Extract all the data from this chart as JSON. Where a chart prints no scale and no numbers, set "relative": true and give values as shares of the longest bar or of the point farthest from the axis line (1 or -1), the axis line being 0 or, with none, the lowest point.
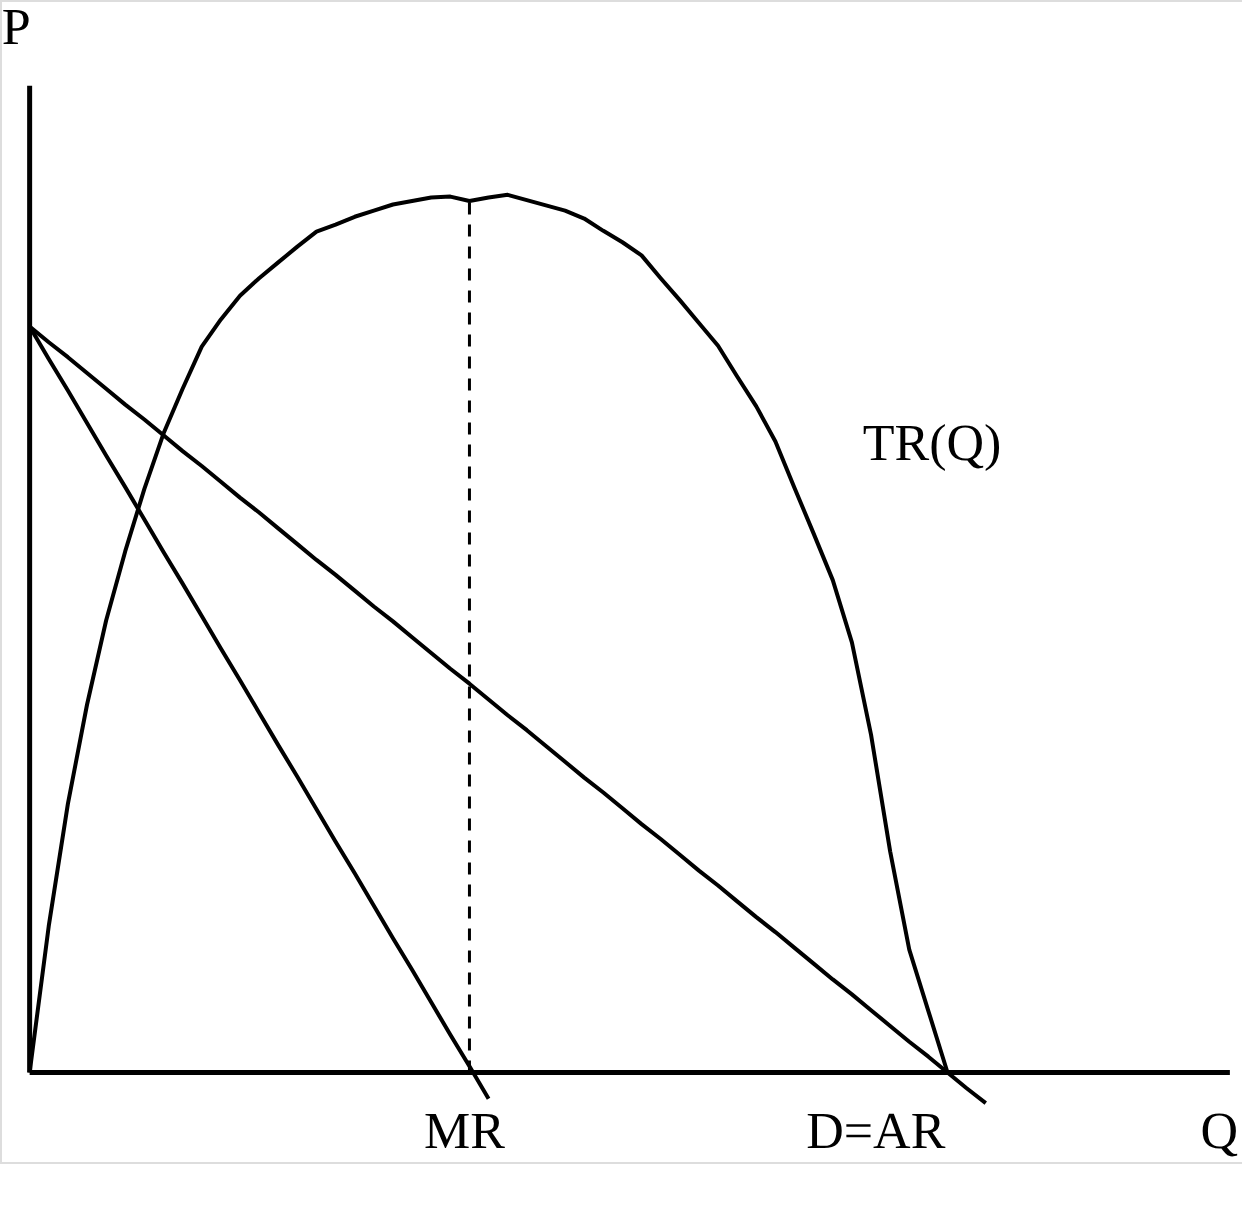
{
  "chart_data": {
    "type": "line",
    "relative": true,
    "xlabel": "Q",
    "ylabel": "P",
    "marker": "none",
    "line_style": "solid",
    "categories": [
      null,
      null,
      null,
      null,
      null,
      null,
      null,
      null,
      null,
      null,
      null,
      null,
      null,
      null,
      null,
      null,
      null,
      null,
      null,
      null,
      null,
      null,
      null,
      null,
      null,
      null,
      null,
      null,
      null,
      null,
      null,
      null,
      null,
      null,
      null,
      null,
      null,
      null,
      null,
      null,
      null,
      null,
      null,
      null,
      null,
      null,
      null,
      null,
      null,
      null,
      null
    ],
    "series": [
      {
        "name": "TR(Q)",
        "color": "#000000",
        "values": [
          0,
          0.167,
          0.306,
          0.419,
          0.515,
          0.594,
          0.665,
          0.728,
          0.779,
          0.827,
          0.858,
          0.885,
          0.905,
          0.923,
          0.941,
          0.958,
          0.966,
          0.975,
          0.982,
          0.989,
          0.993,
          0.997,
          0.998,
          0.993,
          0.997,
          1.0,
          0.994,
          0.988,
          0.982,
          0.973,
          0.959,
          0.946,
          0.931,
          0.905,
          0.88,
          0.854,
          0.828,
          0.793,
          0.759,
          0.719,
          0.666,
          0.614,
          0.561,
          0.49,
          0.385,
          0.252,
          0.14,
          0.07,
          0,
          null,
          null
        ]
      },
      {
        "name": "MR",
        "color": "#000000",
        "values": [
          0.85,
          0.813,
          0.777,
          0.74,
          0.703,
          0.667,
          0.63,
          0.593,
          0.557,
          0.52,
          0.483,
          0.447,
          0.41,
          0.373,
          0.337,
          0.3,
          0.263,
          0.227,
          0.19,
          0.153,
          0.117,
          0.08,
          0.043,
          0.007,
          -0.03,
          null,
          null,
          null,
          null,
          null,
          null,
          null,
          null,
          null,
          null,
          null,
          null,
          null,
          null,
          null,
          null,
          null,
          null,
          null,
          null,
          null,
          null,
          null,
          null,
          null,
          null
        ]
      },
      {
        "name": "D=AR",
        "color": "#000000",
        "values": [
          0.85,
          0.832,
          0.815,
          0.797,
          0.779,
          0.761,
          0.744,
          0.726,
          0.708,
          0.691,
          0.673,
          0.655,
          0.638,
          0.62,
          0.602,
          0.584,
          0.567,
          0.549,
          0.531,
          0.514,
          0.496,
          0.478,
          0.46,
          0.443,
          0.425,
          0.407,
          0.39,
          0.372,
          0.354,
          0.336,
          0.319,
          0.301,
          0.283,
          0.266,
          0.248,
          0.23,
          0.213,
          0.195,
          0.177,
          0.16,
          0.142,
          0.124,
          0.106,
          0.089,
          0.071,
          0.053,
          0.035,
          0.018,
          0,
          -0.018,
          -0.035
        ]
      }
    ]
  }
}
